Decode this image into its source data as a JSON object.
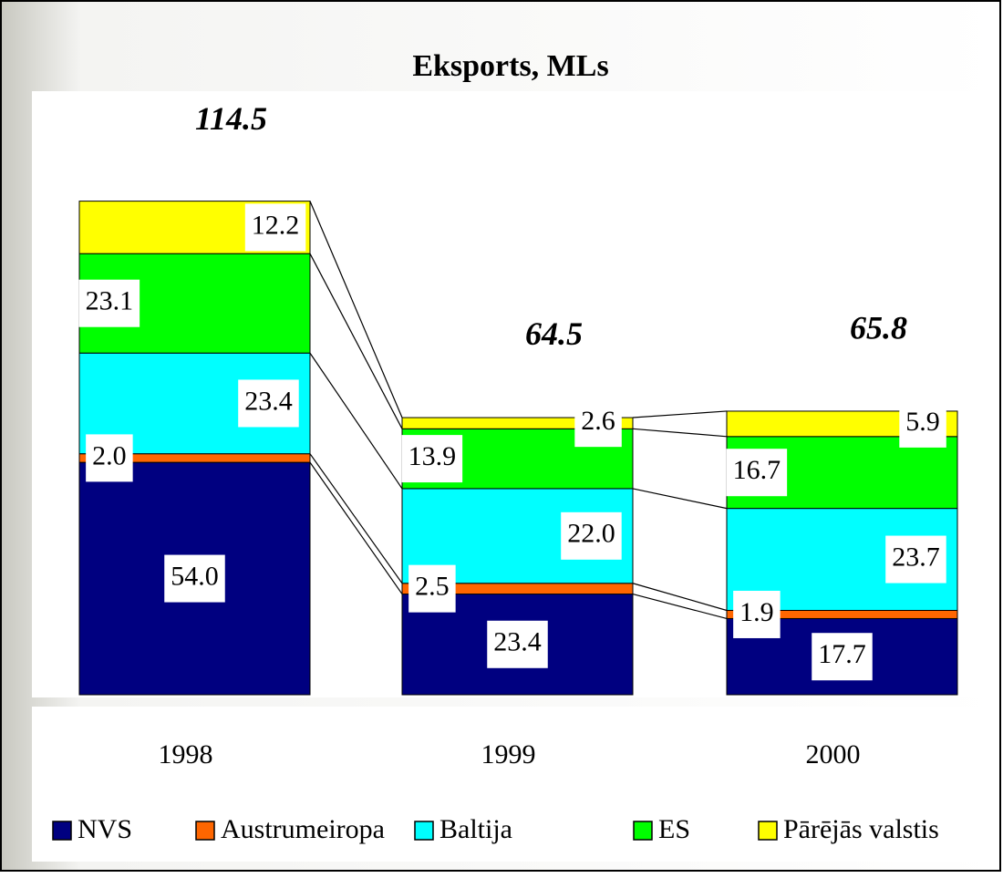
{
  "chart_data": {
    "type": "stacked_bar",
    "title": "Eksports, MLs",
    "categories": [
      "1998",
      "1999",
      "2000"
    ],
    "totals": [
      114.5,
      64.5,
      65.8
    ],
    "series": [
      {
        "name": "NVS",
        "color": "#000080",
        "values": [
          54,
          23.4,
          17.7
        ],
        "value_labels": [
          "54.0",
          "23.4",
          "17.7"
        ]
      },
      {
        "name": "Austrumeiropa",
        "color": "#ff6600",
        "values": [
          2,
          2.5,
          1.9
        ],
        "value_labels": [
          "2.0",
          "2.5",
          "1.9"
        ]
      },
      {
        "name": "Baltija",
        "color": "#00ffff",
        "values": [
          23.4,
          22,
          23.7
        ],
        "value_labels": [
          "23.4",
          "22.0",
          "23.7"
        ]
      },
      {
        "name": "ES",
        "color": "#00ff00",
        "values": [
          23.1,
          13.9,
          16.7
        ],
        "value_labels": [
          "23.1",
          "13.9",
          "16.7"
        ]
      },
      {
        "name": "Pārējās valstis",
        "color": "#ffff00",
        "values": [
          12.2,
          2.6,
          5.9
        ],
        "value_labels": [
          "12.2",
          "2.6",
          "5.9"
        ]
      }
    ]
  }
}
